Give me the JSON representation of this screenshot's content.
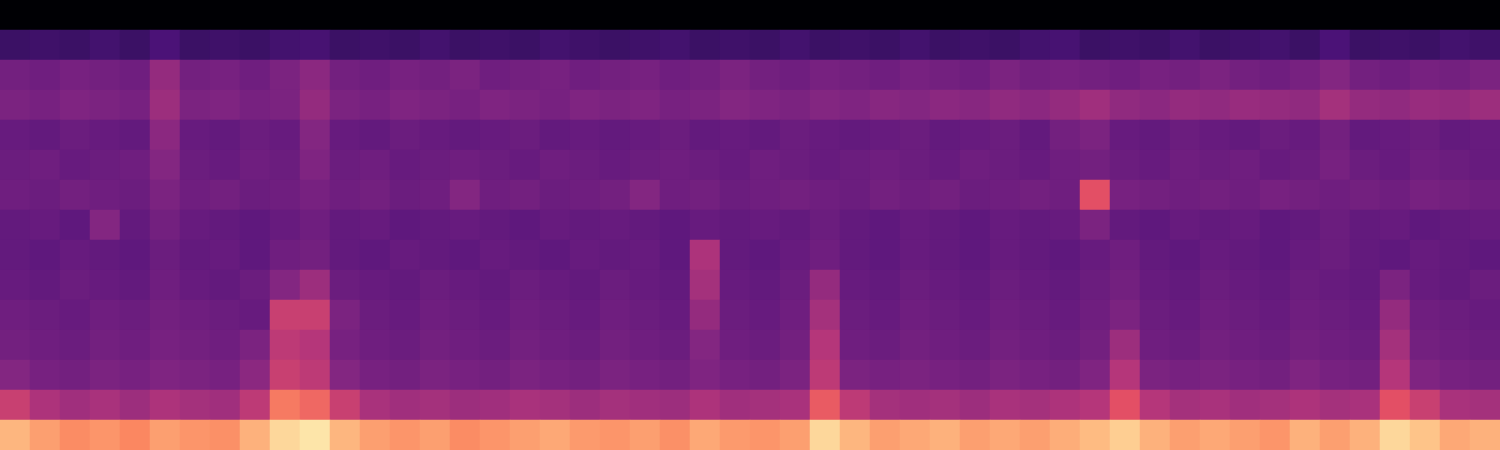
{
  "chart_data": {
    "type": "heatmap",
    "color": "magma",
    "tick_labels": false,
    "grid": false,
    "zlim": [
      0,
      100
    ],
    "cells": [
      [
        0,
        0,
        0,
        0,
        0,
        0,
        0,
        0,
        0,
        0,
        0,
        0,
        0,
        0,
        0,
        0,
        0,
        0,
        0,
        0,
        0,
        0,
        0,
        0,
        0,
        0,
        0,
        0,
        0,
        0,
        0,
        0,
        0,
        0,
        0,
        0,
        0,
        0,
        0,
        0,
        0,
        0,
        0,
        0,
        0,
        0,
        0,
        0,
        0,
        0
      ],
      [
        20,
        21,
        20,
        22,
        20,
        24,
        20,
        21,
        20,
        22,
        23,
        20,
        21,
        20,
        22,
        20,
        21,
        20,
        22,
        21,
        20,
        21,
        22,
        20,
        21,
        20,
        22,
        20,
        21,
        20,
        22,
        20,
        21,
        20,
        22,
        23,
        20,
        21,
        20,
        22,
        20,
        21,
        22,
        20,
        24,
        20,
        21,
        20,
        22,
        21
      ],
      [
        34,
        33,
        35,
        34,
        33,
        42,
        34,
        35,
        33,
        36,
        40,
        34,
        33,
        35,
        34,
        36,
        33,
        34,
        35,
        33,
        34,
        35,
        33,
        34,
        36,
        34,
        33,
        35,
        34,
        33,
        35,
        34,
        33,
        36,
        34,
        35,
        34,
        33,
        35,
        34,
        36,
        34,
        33,
        35,
        38,
        34,
        33,
        35,
        34,
        36
      ],
      [
        36,
        35,
        37,
        36,
        35,
        44,
        36,
        37,
        35,
        36,
        42,
        36,
        35,
        37,
        36,
        35,
        37,
        36,
        35,
        37,
        36,
        37,
        35,
        36,
        38,
        37,
        36,
        38,
        37,
        39,
        38,
        40,
        39,
        41,
        40,
        42,
        45,
        41,
        40,
        42,
        41,
        43,
        42,
        41,
        46,
        42,
        41,
        43,
        42,
        44
      ],
      [
        31,
        30,
        32,
        31,
        30,
        40,
        31,
        30,
        32,
        31,
        38,
        31,
        30,
        32,
        31,
        30,
        31,
        32,
        30,
        31,
        30,
        31,
        32,
        30,
        31,
        30,
        32,
        31,
        30,
        31,
        32,
        30,
        31,
        32,
        30,
        34,
        36,
        31,
        30,
        32,
        31,
        30,
        32,
        31,
        34,
        30,
        31,
        32,
        30,
        31
      ],
      [
        32,
        33,
        31,
        32,
        33,
        38,
        32,
        31,
        33,
        32,
        37,
        32,
        33,
        31,
        32,
        33,
        32,
        31,
        33,
        32,
        31,
        32,
        33,
        32,
        31,
        33,
        32,
        31,
        32,
        33,
        32,
        31,
        33,
        32,
        31,
        33,
        34,
        32,
        31,
        33,
        32,
        33,
        31,
        32,
        35,
        32,
        31,
        33,
        32,
        31
      ],
      [
        33,
        32,
        34,
        33,
        32,
        36,
        33,
        34,
        32,
        33,
        35,
        33,
        34,
        32,
        33,
        38,
        33,
        34,
        32,
        33,
        34,
        38,
        33,
        34,
        32,
        33,
        34,
        33,
        32,
        34,
        33,
        34,
        32,
        33,
        34,
        33,
        62,
        35,
        34,
        33,
        34,
        33,
        35,
        34,
        33,
        34,
        33,
        35,
        34,
        33
      ],
      [
        30,
        31,
        29,
        38,
        30,
        34,
        31,
        30,
        29,
        31,
        33,
        30,
        31,
        29,
        30,
        31,
        30,
        29,
        31,
        30,
        31,
        30,
        29,
        31,
        30,
        31,
        30,
        32,
        30,
        29,
        31,
        30,
        29,
        31,
        30,
        31,
        36,
        30,
        29,
        31,
        30,
        31,
        29,
        30,
        32,
        30,
        31,
        29,
        30,
        31
      ],
      [
        30,
        29,
        31,
        30,
        29,
        32,
        30,
        31,
        29,
        33,
        34,
        30,
        29,
        31,
        30,
        29,
        31,
        30,
        29,
        31,
        30,
        31,
        29,
        48,
        30,
        29,
        31,
        33,
        30,
        29,
        31,
        30,
        29,
        31,
        30,
        29,
        31,
        33,
        30,
        29,
        31,
        30,
        29,
        31,
        32,
        30,
        29,
        31,
        30,
        29
      ],
      [
        31,
        30,
        32,
        31,
        30,
        33,
        31,
        30,
        32,
        38,
        44,
        32,
        31,
        30,
        32,
        31,
        30,
        32,
        31,
        30,
        32,
        31,
        30,
        46,
        31,
        30,
        32,
        42,
        31,
        30,
        32,
        31,
        30,
        32,
        31,
        30,
        32,
        34,
        31,
        30,
        32,
        31,
        30,
        32,
        31,
        30,
        36,
        31,
        30,
        32
      ],
      [
        33,
        32,
        31,
        33,
        32,
        34,
        33,
        32,
        31,
        55,
        55,
        36,
        32,
        31,
        33,
        32,
        31,
        33,
        32,
        31,
        33,
        32,
        31,
        42,
        32,
        31,
        33,
        46,
        32,
        31,
        33,
        32,
        31,
        33,
        32,
        31,
        33,
        36,
        32,
        31,
        33,
        32,
        31,
        33,
        32,
        31,
        42,
        33,
        32,
        31
      ],
      [
        34,
        33,
        32,
        34,
        33,
        35,
        34,
        33,
        36,
        52,
        50,
        35,
        33,
        32,
        34,
        33,
        32,
        34,
        33,
        32,
        34,
        33,
        32,
        38,
        33,
        32,
        34,
        50,
        33,
        32,
        34,
        33,
        32,
        34,
        33,
        32,
        34,
        44,
        33,
        32,
        34,
        33,
        32,
        34,
        33,
        32,
        46,
        34,
        33,
        32
      ],
      [
        38,
        35,
        34,
        36,
        35,
        37,
        36,
        35,
        40,
        55,
        52,
        38,
        35,
        34,
        36,
        35,
        34,
        36,
        35,
        34,
        36,
        35,
        34,
        37,
        35,
        34,
        36,
        52,
        36,
        35,
        36,
        35,
        34,
        36,
        35,
        34,
        37,
        50,
        36,
        35,
        36,
        35,
        34,
        37,
        35,
        34,
        50,
        37,
        35,
        34
      ],
      [
        55,
        48,
        45,
        47,
        44,
        48,
        46,
        45,
        52,
        72,
        68,
        55,
        47,
        45,
        46,
        44,
        45,
        47,
        46,
        44,
        46,
        45,
        44,
        48,
        45,
        46,
        47,
        65,
        52,
        46,
        45,
        46,
        44,
        47,
        46,
        48,
        50,
        62,
        50,
        46,
        47,
        45,
        46,
        48,
        46,
        47,
        62,
        55,
        47,
        46
      ],
      [
        85,
        80,
        76,
        78,
        75,
        80,
        78,
        77,
        84,
        92,
        95,
        85,
        80,
        78,
        80,
        76,
        78,
        80,
        82,
        79,
        78,
        80,
        77,
        82,
        79,
        78,
        80,
        92,
        85,
        80,
        82,
        84,
        80,
        82,
        80,
        83,
        86,
        90,
        84,
        80,
        82,
        80,
        78,
        84,
        80,
        84,
        92,
        88,
        82,
        84
      ]
    ]
  }
}
